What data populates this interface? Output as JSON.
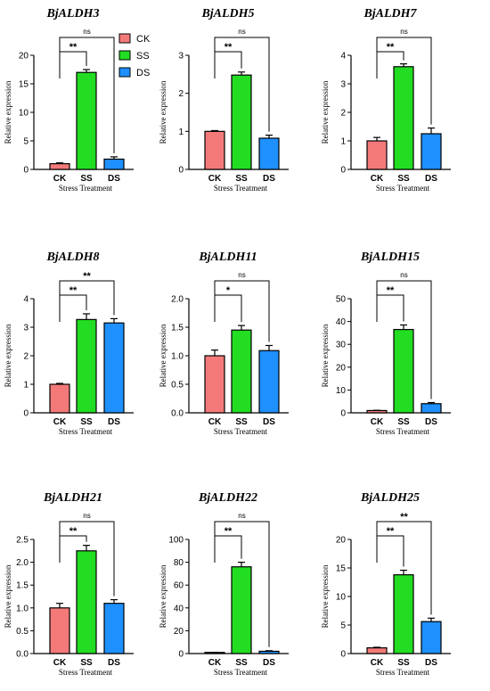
{
  "legend": {
    "entries": [
      {
        "name": "CK",
        "color": "#f47a7a"
      },
      {
        "name": "SS",
        "color": "#22dd22"
      },
      {
        "name": "DS",
        "color": "#1e90ff"
      }
    ]
  },
  "chart_data": [
    {
      "type": "bar",
      "title": "BjALDH3",
      "categories": [
        "CK",
        "SS",
        "DS"
      ],
      "values": [
        1.0,
        17.0,
        1.8
      ],
      "errors": [
        0.15,
        0.5,
        0.4
      ],
      "xlabel": "Stress Treatment",
      "ylabel": "Relative expression",
      "ylim": [
        0,
        20
      ],
      "yticks": [
        0,
        5,
        10,
        15,
        20
      ],
      "significance": [
        {
          "vs": "SS",
          "label": "**"
        },
        {
          "vs": "DS",
          "label": "ns"
        }
      ]
    },
    {
      "type": "bar",
      "title": "BjALDH5",
      "categories": [
        "CK",
        "SS",
        "DS"
      ],
      "values": [
        1.0,
        2.48,
        0.82
      ],
      "errors": [
        0.02,
        0.08,
        0.08
      ],
      "xlabel": "Stress Treatment",
      "ylabel": "Relative expression",
      "ylim": [
        0,
        3
      ],
      "yticks": [
        0,
        1,
        2,
        3
      ],
      "significance": [
        {
          "vs": "SS",
          "label": "**"
        },
        {
          "vs": "DS",
          "label": "ns"
        }
      ]
    },
    {
      "type": "bar",
      "title": "BjALDH7",
      "categories": [
        "CK",
        "SS",
        "DS"
      ],
      "values": [
        1.0,
        3.6,
        1.25
      ],
      "errors": [
        0.12,
        0.1,
        0.2
      ],
      "xlabel": "Stress Treatment",
      "ylabel": "Relative expression",
      "ylim": [
        0,
        4
      ],
      "yticks": [
        0,
        1,
        2,
        3,
        4
      ],
      "significance": [
        {
          "vs": "SS",
          "label": "**"
        },
        {
          "vs": "DS",
          "label": "ns"
        }
      ]
    },
    {
      "type": "bar",
      "title": "BjALDH8",
      "categories": [
        "CK",
        "SS",
        "DS"
      ],
      "values": [
        1.0,
        3.27,
        3.15
      ],
      "errors": [
        0.03,
        0.2,
        0.15
      ],
      "xlabel": "Stress Treatment",
      "ylabel": "Relative expression",
      "ylim": [
        0,
        4
      ],
      "yticks": [
        0,
        1,
        2,
        3,
        4
      ],
      "significance": [
        {
          "vs": "SS",
          "label": "**"
        },
        {
          "vs": "DS",
          "label": "**"
        }
      ]
    },
    {
      "type": "bar",
      "title": "BjALDH11",
      "categories": [
        "CK",
        "SS",
        "DS"
      ],
      "values": [
        1.0,
        1.45,
        1.09
      ],
      "errors": [
        0.1,
        0.08,
        0.09
      ],
      "xlabel": "Stress Treatment",
      "ylabel": "Relative expression",
      "ylim": [
        0,
        2.0
      ],
      "yticks": [
        0.0,
        0.5,
        1.0,
        1.5,
        2.0
      ],
      "significance": [
        {
          "vs": "SS",
          "label": "*"
        },
        {
          "vs": "DS",
          "label": "ns"
        }
      ]
    },
    {
      "type": "bar",
      "title": "BjALDH15",
      "categories": [
        "CK",
        "SS",
        "DS"
      ],
      "values": [
        1.0,
        36.5,
        4.0
      ],
      "errors": [
        0.1,
        2.0,
        0.5
      ],
      "xlabel": "Stress Treatment",
      "ylabel": "Relative expression",
      "ylim": [
        0,
        50
      ],
      "yticks": [
        0,
        10,
        20,
        30,
        40,
        50
      ],
      "significance": [
        {
          "vs": "SS",
          "label": "**"
        },
        {
          "vs": "DS",
          "label": "ns"
        }
      ]
    },
    {
      "type": "bar",
      "title": "BjALDH21",
      "categories": [
        "CK",
        "SS",
        "DS"
      ],
      "values": [
        1.0,
        2.25,
        1.1
      ],
      "errors": [
        0.1,
        0.12,
        0.08
      ],
      "xlabel": "Stress Treatment",
      "ylabel": "Relative expression",
      "ylim": [
        0,
        2.5
      ],
      "yticks": [
        0.0,
        0.5,
        1.0,
        1.5,
        2.0,
        2.5
      ],
      "significance": [
        {
          "vs": "SS",
          "label": "**"
        },
        {
          "vs": "DS",
          "label": "ns"
        }
      ]
    },
    {
      "type": "bar",
      "title": "BjALDH22",
      "categories": [
        "CK",
        "SS",
        "DS"
      ],
      "values": [
        1.0,
        76.0,
        2.0
      ],
      "errors": [
        0.1,
        4.0,
        0.5
      ],
      "xlabel": "Stress Treatment",
      "ylabel": "Relative expression",
      "ylim": [
        0,
        100
      ],
      "yticks": [
        0,
        20,
        40,
        60,
        80,
        100
      ],
      "significance": [
        {
          "vs": "SS",
          "label": "**"
        },
        {
          "vs": "DS",
          "label": "ns"
        }
      ]
    },
    {
      "type": "bar",
      "title": "BjALDH25",
      "categories": [
        "CK",
        "SS",
        "DS"
      ],
      "values": [
        1.0,
        13.8,
        5.6
      ],
      "errors": [
        0.1,
        0.8,
        0.6
      ],
      "xlabel": "Stress Treatment",
      "ylabel": "Relative expression",
      "ylim": [
        0,
        20
      ],
      "yticks": [
        0,
        5,
        10,
        15,
        20
      ],
      "significance": [
        {
          "vs": "SS",
          "label": "**"
        },
        {
          "vs": "DS",
          "label": "**"
        }
      ]
    }
  ]
}
